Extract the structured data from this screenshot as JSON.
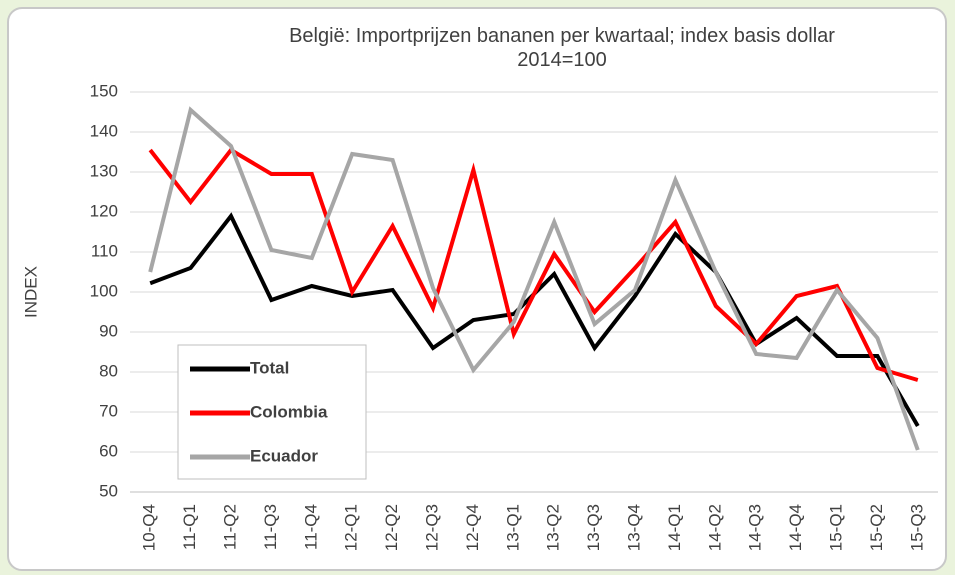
{
  "chart_data": {
    "type": "line",
    "title": "België: Importprijzen bananen per kwartaal; index basis dollar 2014=100",
    "y_label": "INDEX",
    "categories": [
      "10-Q4",
      "11-Q1",
      "11-Q2",
      "11-Q3",
      "11-Q4",
      "12-Q1",
      "12-Q2",
      "12-Q3",
      "12-Q4",
      "13-Q1",
      "13-Q2",
      "13-Q3",
      "13-Q4",
      "14-Q1",
      "14-Q2",
      "14-Q3",
      "14-Q4",
      "15-Q1",
      "15-Q2",
      "15-Q3"
    ],
    "series": [
      {
        "name": "Total",
        "color": "#000000",
        "values": [
          102.2,
          106,
          119,
          98,
          101.5,
          99,
          100.5,
          86,
          93,
          94.5,
          104.5,
          86,
          99,
          114.5,
          105,
          87,
          93.5,
          84,
          84,
          66.5
        ]
      },
      {
        "name": "Colombia",
        "color": "#ff0000",
        "values": [
          135.5,
          122.5,
          135.5,
          129.5,
          129.5,
          100,
          116.5,
          96,
          130.5,
          89.5,
          109.5,
          95,
          106,
          117.5,
          96.5,
          87,
          99,
          101.5,
          81,
          78
        ]
      },
      {
        "name": "Ecuador",
        "color": "#a6a6a6",
        "values": [
          105,
          145.5,
          136.5,
          110.5,
          108.5,
          134.5,
          133,
          101,
          80.5,
          92.5,
          117.5,
          92,
          100.5,
          128,
          105,
          84.5,
          83.5,
          100.5,
          88.5,
          60.5
        ]
      }
    ],
    "ylim": [
      50,
      150
    ],
    "yticks": [
      50,
      60,
      70,
      80,
      90,
      100,
      110,
      120,
      130,
      140,
      150
    ],
    "grid": true,
    "legend": "lower-left"
  }
}
